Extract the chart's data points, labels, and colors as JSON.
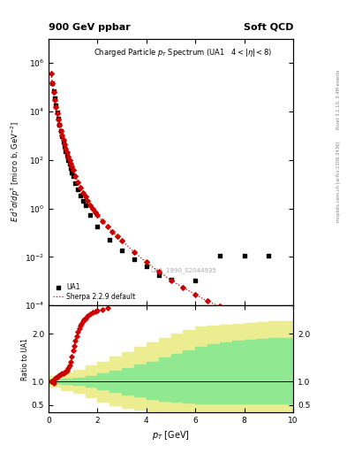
{
  "title_top_left": "900 GeV ppbar",
  "title_top_right": "Soft QCD",
  "plot_title": "Charged Particle p_{T} Spectrum (UA1   4 < |\\eta| < 8)",
  "watermark": "UA1_1990_S2044935",
  "right_label_top": "Rivet 3.1.10, 3.4M events",
  "right_label_bottom": "mcplots.cern.ch [arXiv:1306.3436]",
  "ylabel_main": "E d^{3}\\sigma/dp^{3} [micro b, GeV^{2}]",
  "ylabel_ratio": "Ratio to UA1",
  "xlabel": "p_{T} [GeV]",
  "xlim": [
    0,
    10
  ],
  "ylim_main": [
    0.0001,
    10000000.0
  ],
  "ylim_ratio": [
    0.35,
    2.6
  ],
  "ratio_yticks": [
    0.5,
    1.0,
    2.0
  ],
  "ua1_pt": [
    0.15,
    0.2,
    0.25,
    0.3,
    0.35,
    0.4,
    0.45,
    0.5,
    0.55,
    0.6,
    0.65,
    0.7,
    0.75,
    0.8,
    0.85,
    0.9,
    0.95,
    1.0,
    1.1,
    1.2,
    1.3,
    1.4,
    1.5,
    1.7,
    2.0,
    2.5,
    3.0,
    3.5,
    4.0,
    4.5,
    5.0,
    6.0,
    7.0,
    8.0,
    9.0
  ],
  "ua1_y": [
    150000.0,
    70000.0,
    35000.0,
    18000.0,
    9000,
    5000,
    2800,
    1600,
    950,
    580,
    360,
    230,
    150,
    100,
    68,
    45,
    31,
    21,
    11,
    6.0,
    3.5,
    2.0,
    1.3,
    0.55,
    0.18,
    0.05,
    0.018,
    0.008,
    0.004,
    0.0018,
    0.0012,
    0.0011,
    0.011,
    0.011,
    0.011
  ],
  "sherpa_pt": [
    0.1,
    0.15,
    0.2,
    0.25,
    0.3,
    0.35,
    0.4,
    0.45,
    0.5,
    0.55,
    0.6,
    0.65,
    0.7,
    0.75,
    0.8,
    0.85,
    0.9,
    0.95,
    1.0,
    1.1,
    1.2,
    1.3,
    1.4,
    1.5,
    1.6,
    1.7,
    1.8,
    1.9,
    2.0,
    2.2,
    2.4,
    2.6,
    2.8,
    3.0,
    3.5,
    4.0,
    4.5,
    5.0,
    5.5,
    6.0,
    6.5,
    7.0,
    7.5,
    8.0,
    8.5,
    9.0,
    9.5
  ],
  "sherpa_y": [
    350000.0,
    150000.0,
    60000.0,
    30000.0,
    15000.0,
    8000,
    4500,
    2700,
    1600,
    1000,
    650,
    430,
    290,
    200,
    140,
    100,
    72,
    52,
    38,
    21,
    12,
    7.2,
    4.5,
    3.0,
    2.0,
    1.4,
    0.98,
    0.7,
    0.52,
    0.3,
    0.18,
    0.11,
    0.07,
    0.046,
    0.016,
    0.006,
    0.0025,
    0.0011,
    0.00055,
    0.00028,
    0.00015,
    9e-05,
    5e-05,
    3e-05,
    2e-05,
    1.3e-05,
    9e-06
  ],
  "ratio_pt_line": [
    0.1,
    0.15,
    0.2,
    0.25,
    0.3,
    0.35,
    0.4,
    0.45,
    0.5,
    0.55,
    0.6,
    0.65,
    0.7,
    0.75,
    0.8,
    0.85,
    0.9,
    0.95,
    1.0,
    1.05,
    1.1,
    1.15,
    1.2,
    1.25,
    1.3,
    1.35,
    1.4,
    1.45,
    1.5,
    1.6,
    1.7,
    1.8,
    1.9,
    2.0,
    2.2,
    2.4
  ],
  "ratio_y_line": [
    1.0,
    1.0,
    0.97,
    1.05,
    1.08,
    1.1,
    1.12,
    1.13,
    1.15,
    1.16,
    1.17,
    1.18,
    1.2,
    1.23,
    1.28,
    1.33,
    1.42,
    1.52,
    1.65,
    1.75,
    1.85,
    1.95,
    2.05,
    2.12,
    2.18,
    2.22,
    2.26,
    2.3,
    2.33,
    2.38,
    2.42,
    2.45,
    2.47,
    2.5,
    2.52,
    2.54
  ],
  "green_band_pt": [
    0.0,
    0.5,
    1.0,
    1.5,
    2.0,
    2.5,
    3.0,
    3.5,
    4.0,
    4.5,
    5.0,
    5.5,
    6.0,
    6.5,
    7.0,
    7.5,
    8.0,
    8.5,
    9.0,
    9.5,
    10.0
  ],
  "green_band_lo": [
    0.97,
    0.95,
    0.92,
    0.88,
    0.83,
    0.78,
    0.73,
    0.68,
    0.63,
    0.6,
    0.57,
    0.55,
    0.54,
    0.53,
    0.53,
    0.53,
    0.53,
    0.53,
    0.53,
    0.53,
    0.53
  ],
  "green_band_hi": [
    1.03,
    1.05,
    1.08,
    1.12,
    1.17,
    1.22,
    1.28,
    1.35,
    1.42,
    1.5,
    1.58,
    1.65,
    1.72,
    1.78,
    1.83,
    1.86,
    1.88,
    1.9,
    1.91,
    1.92,
    1.93
  ],
  "yellow_band_pt": [
    0.0,
    0.5,
    1.0,
    1.5,
    2.0,
    2.5,
    3.0,
    3.5,
    4.0,
    4.5,
    5.0,
    5.5,
    6.0,
    6.5,
    7.0,
    7.5,
    8.0,
    8.5,
    9.0,
    9.5,
    10.0
  ],
  "yellow_band_lo": [
    0.88,
    0.82,
    0.75,
    0.67,
    0.58,
    0.5,
    0.44,
    0.4,
    0.37,
    0.35,
    0.34,
    0.34,
    0.34,
    0.34,
    0.34,
    0.34,
    0.34,
    0.34,
    0.34,
    0.34,
    0.34
  ],
  "yellow_band_hi": [
    1.12,
    1.18,
    1.25,
    1.33,
    1.42,
    1.52,
    1.62,
    1.72,
    1.82,
    1.92,
    2.0,
    2.08,
    2.15,
    2.18,
    2.2,
    2.22,
    2.24,
    2.25,
    2.26,
    2.27,
    2.28
  ],
  "ua1_color": "#000000",
  "sherpa_color": "#cc0000",
  "green_color": "#90e890",
  "yellow_color": "#ecec90",
  "legend_ua1": "UA1",
  "legend_sherpa": "Sherpa 2.2.9 default"
}
